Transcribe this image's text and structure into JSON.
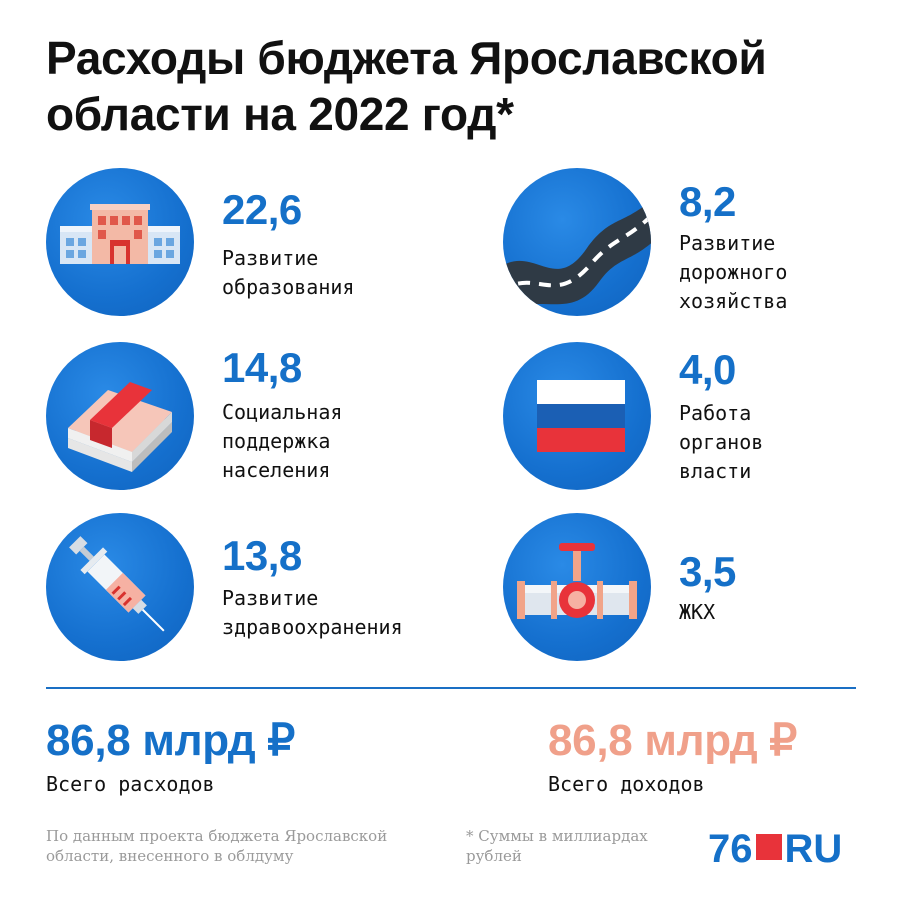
{
  "title": "Расходы бюджета Ярославской области на 2022 год*",
  "items": [
    {
      "value": "22,6",
      "label": "Развитие образования",
      "icon": "school-building-icon"
    },
    {
      "value": "8,2",
      "label": "Развитие дорожного хозяйства",
      "icon": "road-icon"
    },
    {
      "value": "14,8",
      "label": "Социальная поддержка населения",
      "icon": "money-stack-icon"
    },
    {
      "value": "4,0",
      "label": "Работа органов власти",
      "icon": "russian-flag-icon"
    },
    {
      "value": "13,8",
      "label": "Развитие здравоохранения",
      "icon": "syringe-icon"
    },
    {
      "value": "3,5",
      "label": "ЖКХ",
      "icon": "pipe-valve-icon"
    }
  ],
  "totals": {
    "expenses": {
      "value": "86,8 млрд ₽",
      "label": "Всего расходов",
      "color": "#1570c8"
    },
    "income": {
      "value": "86,8 млрд ₽",
      "label": "Всего доходов",
      "color": "#f0a08a"
    }
  },
  "footer": {
    "source": "По данным проекта бюджета Ярославской области, внесенного в облдуму",
    "note": "* Суммы в миллиардах рублей",
    "logo_num": "76",
    "logo_ru": "RU"
  },
  "colors": {
    "accent": "#1570c8",
    "circle": "#1570cf",
    "logo_red": "#e8333a"
  }
}
